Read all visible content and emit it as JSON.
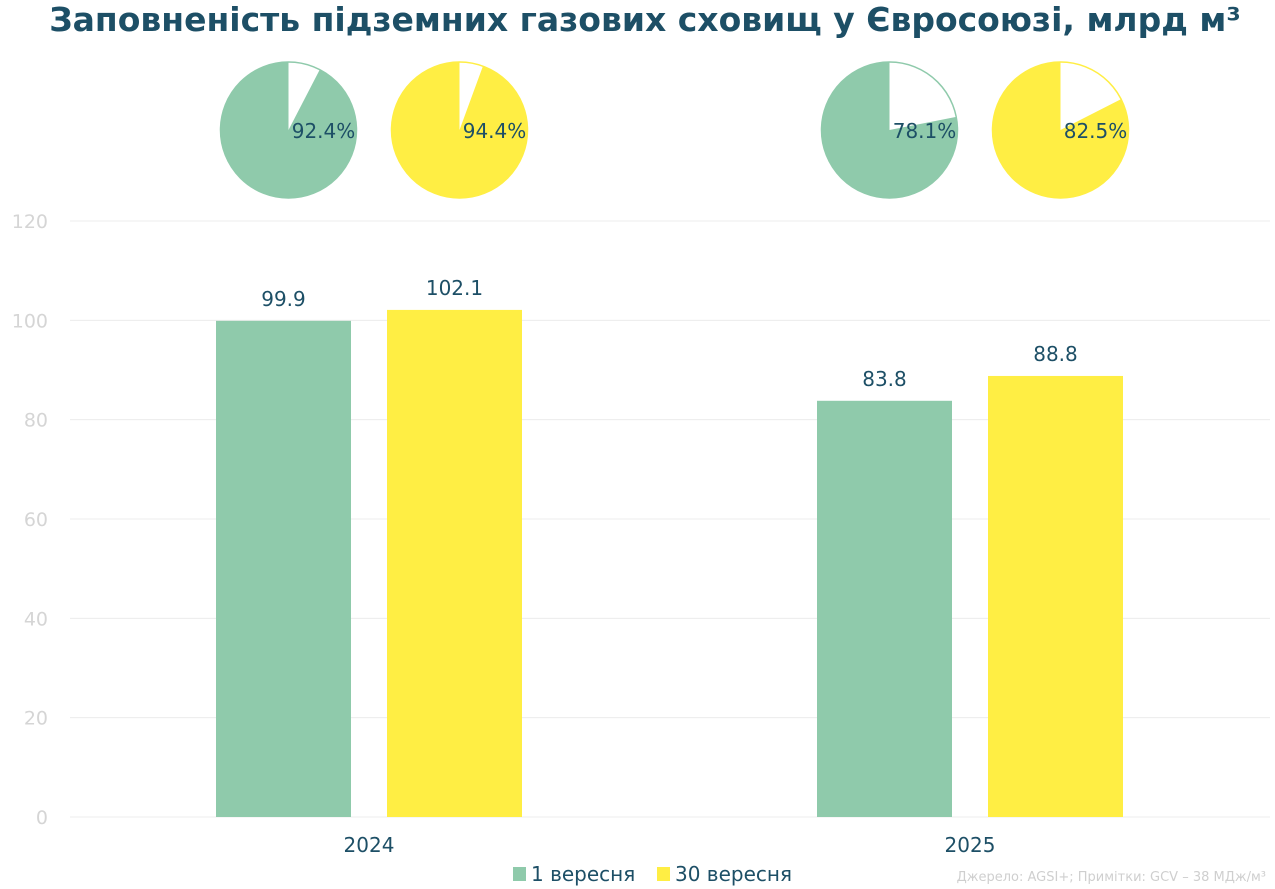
{
  "chart_data": {
    "type": "bar",
    "title": "Заповненість підземних газових сховищ у Євросоюзі, млрд м³",
    "categories": [
      "2024",
      "2025"
    ],
    "series": [
      {
        "name": "1 вересня",
        "color": "#8fcaab",
        "values": [
          99.9,
          83.8
        ],
        "value_labels": [
          "99.9",
          "83.8"
        ],
        "fill_pct": [
          92.4,
          78.1
        ],
        "fill_pct_labels": [
          "92.4%",
          "78.1%"
        ]
      },
      {
        "name": "30 вересня",
        "color": "#ffee44",
        "values": [
          102.1,
          88.8
        ],
        "value_labels": [
          "102.1",
          "88.8"
        ],
        "fill_pct": [
          94.4,
          82.5
        ],
        "fill_pct_labels": [
          "94.4%",
          "82.5%"
        ]
      }
    ],
    "ylim": [
      0,
      120
    ],
    "yticks": [
      0,
      20,
      40,
      60,
      80,
      100,
      120
    ],
    "grid": true,
    "legend": "bottom-center",
    "source_note": "Джерело: AGSI+; Примітки: GCV – 38 МДж/м³"
  }
}
